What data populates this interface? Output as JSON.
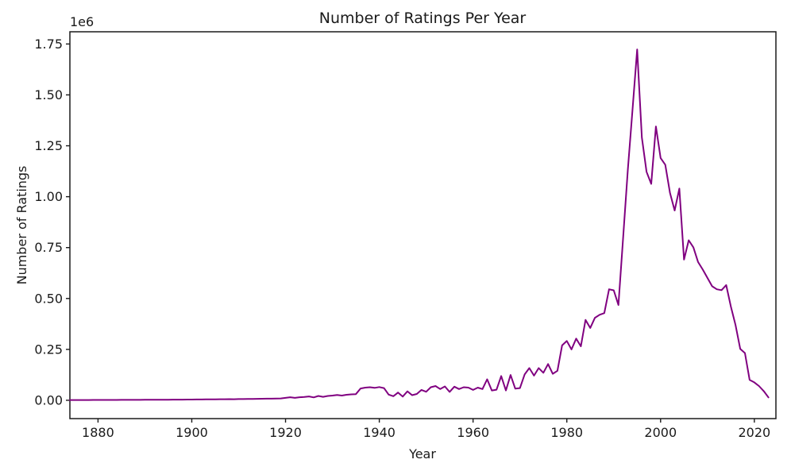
{
  "figure": {
    "background": "#ffffff"
  },
  "chart_data": {
    "type": "line",
    "title": "Number of Ratings Per Year",
    "xlabel": "Year",
    "ylabel": "Number of Ratings",
    "y_offset_label": "1e6",
    "grid": false,
    "legend": "none",
    "line_color": "#800080",
    "axis_color": "#1a1a1a",
    "xlim": [
      1874,
      2024.6
    ],
    "ylim": [
      -90000,
      1810000
    ],
    "x_ticks": [
      1880,
      1900,
      1920,
      1940,
      1960,
      1980,
      2000,
      2020
    ],
    "y_ticks": [
      0,
      250000,
      500000,
      750000,
      1000000,
      1250000,
      1500000,
      1750000
    ],
    "y_tick_labels": [
      "0.00",
      "0.25",
      "0.50",
      "0.75",
      "1.00",
      "1.25",
      "1.50",
      "1.75"
    ],
    "series_name": "Number of Ratings",
    "years": [
      1874,
      1875,
      1876,
      1877,
      1878,
      1879,
      1880,
      1881,
      1882,
      1883,
      1884,
      1885,
      1886,
      1887,
      1888,
      1889,
      1890,
      1891,
      1892,
      1893,
      1894,
      1895,
      1896,
      1897,
      1898,
      1899,
      1900,
      1901,
      1902,
      1903,
      1904,
      1905,
      1906,
      1907,
      1908,
      1909,
      1910,
      1911,
      1912,
      1913,
      1914,
      1915,
      1916,
      1917,
      1918,
      1919,
      1920,
      1921,
      1922,
      1923,
      1924,
      1925,
      1926,
      1927,
      1928,
      1929,
      1930,
      1931,
      1932,
      1933,
      1934,
      1935,
      1936,
      1937,
      1938,
      1939,
      1940,
      1941,
      1942,
      1943,
      1944,
      1945,
      1946,
      1947,
      1948,
      1949,
      1950,
      1951,
      1952,
      1953,
      1954,
      1955,
      1956,
      1957,
      1958,
      1959,
      1960,
      1961,
      1962,
      1963,
      1964,
      1965,
      1966,
      1967,
      1968,
      1969,
      1970,
      1971,
      1972,
      1973,
      1974,
      1975,
      1976,
      1977,
      1978,
      1979,
      1980,
      1981,
      1982,
      1983,
      1984,
      1985,
      1986,
      1987,
      1988,
      1989,
      1990,
      1991,
      1992,
      1993,
      1994,
      1995,
      1996,
      1997,
      1998,
      1999,
      2000,
      2001,
      2002,
      2003,
      2004,
      2005,
      2006,
      2007,
      2008,
      2009,
      2010,
      2011,
      2012,
      2013,
      2014,
      2015,
      2016,
      2017,
      2018,
      2019,
      2020,
      2021,
      2022,
      2023
    ],
    "values": [
      1200,
      1300,
      1100,
      1400,
      1300,
      1500,
      1600,
      1500,
      1700,
      1600,
      1800,
      2000,
      1900,
      2100,
      2200,
      2100,
      2300,
      2400,
      2500,
      2700,
      2800,
      3000,
      3200,
      3100,
      3300,
      3500,
      3800,
      4000,
      4200,
      4500,
      4300,
      4800,
      5000,
      5200,
      5500,
      5300,
      5800,
      6000,
      6500,
      6800,
      7000,
      7500,
      7800,
      8000,
      8500,
      9000,
      12000,
      15000,
      12000,
      15000,
      16000,
      19000,
      14000,
      21000,
      17000,
      21000,
      23000,
      26000,
      23000,
      27000,
      29000,
      30000,
      58000,
      62000,
      64000,
      61000,
      65000,
      60000,
      28000,
      20000,
      38000,
      18000,
      44000,
      25000,
      31000,
      51000,
      42000,
      64000,
      70000,
      55000,
      68000,
      41000,
      67000,
      55000,
      64000,
      62000,
      51000,
      62000,
      55000,
      103000,
      48000,
      52000,
      119000,
      48000,
      124000,
      57000,
      60000,
      127000,
      158000,
      121000,
      158000,
      135000,
      178000,
      130000,
      145000,
      270000,
      291000,
      250000,
      303000,
      265000,
      395000,
      355000,
      405000,
      420000,
      428000,
      545000,
      540000,
      468000,
      797000,
      1130000,
      1425000,
      1723000,
      1291000,
      1122000,
      1063000,
      1345000,
      1190000,
      1157000,
      1019000,
      932000,
      1040000,
      691000,
      786000,
      751000,
      679000,
      642000,
      601000,
      560000,
      545000,
      541000,
      566000,
      460000,
      369000,
      252000,
      232000,
      100000,
      88000,
      70000,
      45000,
      14000
    ]
  }
}
